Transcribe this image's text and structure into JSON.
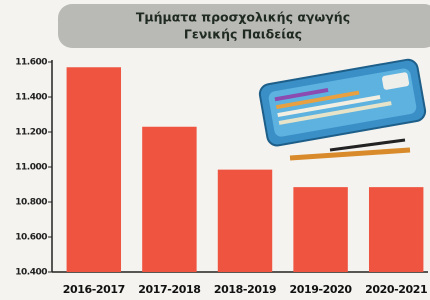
{
  "chart_data": {
    "type": "bar",
    "title": [
      "Τμήματα προσχολικής αγωγής",
      "Γενικής Παιδείας"
    ],
    "categories": [
      "2016-2017",
      "2017-2018",
      "2018-2019",
      "2019-2020",
      "2020-2021"
    ],
    "values": [
      11570,
      11230,
      10985,
      10885,
      10885
    ],
    "color": "#ef5440",
    "ylim": [
      10400,
      11600
    ],
    "yticks": [
      {
        "value": 10400,
        "label": "10.400"
      },
      {
        "value": 10600,
        "label": "10.600"
      },
      {
        "value": 10800,
        "label": "10.800"
      },
      {
        "value": 11000,
        "label": "11.000"
      },
      {
        "value": 11200,
        "label": "11.200"
      },
      {
        "value": 11400,
        "label": "11.400"
      },
      {
        "value": 11600,
        "label": "11.600"
      }
    ],
    "grid": false
  }
}
